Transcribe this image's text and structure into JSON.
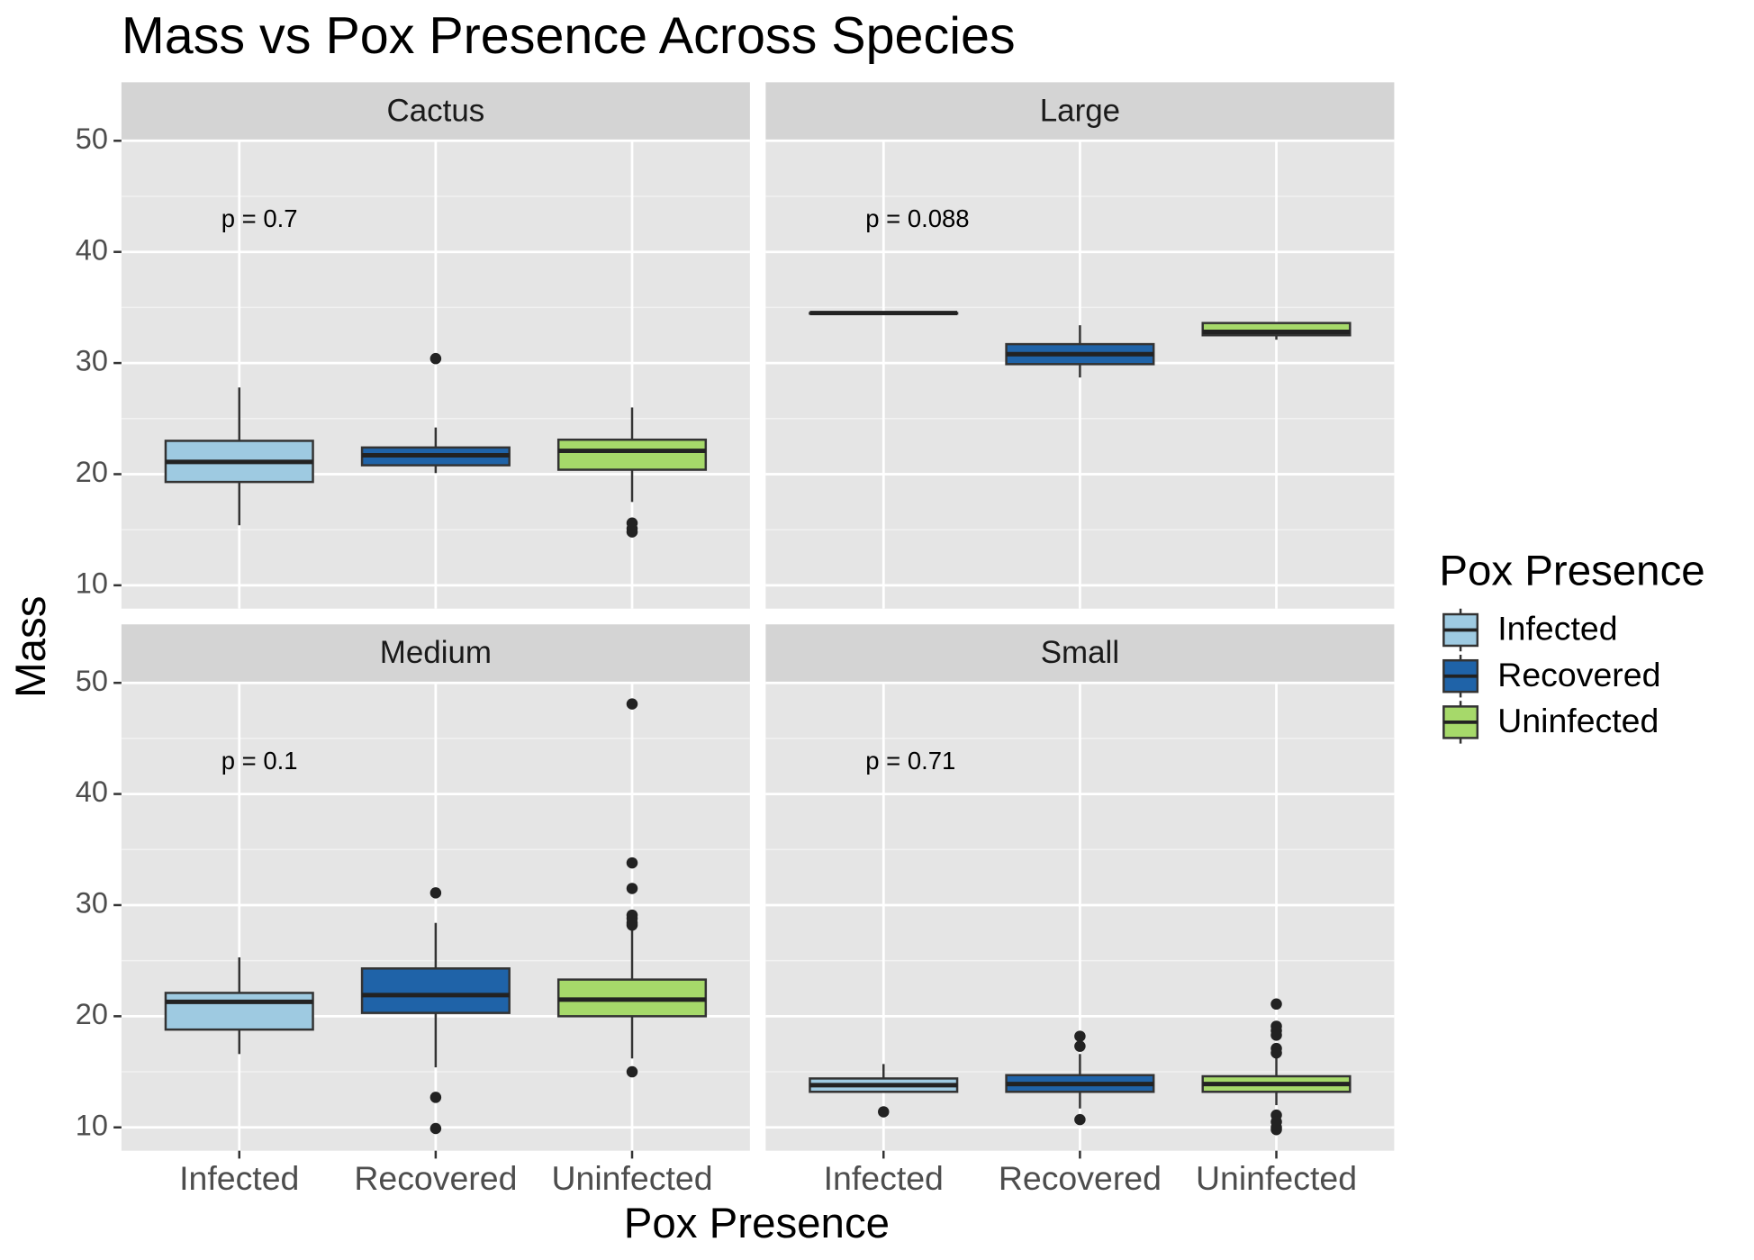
{
  "chart_data": {
    "type": "box",
    "title": "Mass vs Pox Presence Across Species",
    "x_label": "Pox Presence",
    "y_label": "Mass",
    "legend_title": "Pox Presence",
    "categories": [
      "Infected",
      "Recovered",
      "Uninfected"
    ],
    "colors": [
      "#9ecae1",
      "#1f63a8",
      "#a6d96a"
    ],
    "ylim": [
      7.9,
      50.0
    ],
    "yticks": [
      10,
      20,
      30,
      40,
      50
    ],
    "y_minor_ticks": [
      15,
      25,
      35,
      45
    ],
    "grid": true,
    "facets": [
      {
        "name": "Cactus",
        "p_label": "p = 0.7",
        "boxes": [
          {
            "min": 15.4,
            "q1": 19.3,
            "median": 21.1,
            "q3": 23.0,
            "max": 27.8,
            "outliers": []
          },
          {
            "min": 20.1,
            "q1": 20.8,
            "median": 21.7,
            "q3": 22.4,
            "max": 24.2,
            "outliers": [
              30.4
            ]
          },
          {
            "min": 17.5,
            "q1": 20.4,
            "median": 22.1,
            "q3": 23.1,
            "max": 26.0,
            "outliers": [
              15.6,
              15.1,
              14.8
            ]
          }
        ]
      },
      {
        "name": "Large",
        "p_label": "p = 0.088",
        "boxes": [
          {
            "min": 34.5,
            "q1": 34.5,
            "median": 34.5,
            "q3": 34.5,
            "max": 34.5,
            "outliers": []
          },
          {
            "min": 28.7,
            "q1": 29.9,
            "median": 30.8,
            "q3": 31.7,
            "max": 33.4,
            "outliers": []
          },
          {
            "min": 32.1,
            "q1": 32.5,
            "median": 32.8,
            "q3": 33.6,
            "max": 33.6,
            "outliers": []
          }
        ]
      },
      {
        "name": "Medium",
        "p_label": "p = 0.1",
        "boxes": [
          {
            "min": 16.6,
            "q1": 18.8,
            "median": 21.3,
            "q3": 22.1,
            "max": 25.3,
            "outliers": []
          },
          {
            "min": 15.4,
            "q1": 20.3,
            "median": 21.9,
            "q3": 24.3,
            "max": 28.4,
            "outliers": [
              31.1,
              12.7,
              9.9
            ]
          },
          {
            "min": 16.2,
            "q1": 20.0,
            "median": 21.5,
            "q3": 23.3,
            "max": 27.9,
            "outliers": [
              48.1,
              33.8,
              31.5,
              29.1,
              28.8,
              28.4,
              28.2,
              15.0
            ]
          }
        ]
      },
      {
        "name": "Small",
        "p_label": "p = 0.71",
        "boxes": [
          {
            "min": 13.1,
            "q1": 13.2,
            "median": 13.8,
            "q3": 14.4,
            "max": 15.7,
            "outliers": [
              11.4
            ]
          },
          {
            "min": 11.7,
            "q1": 13.2,
            "median": 13.9,
            "q3": 14.7,
            "max": 16.6,
            "outliers": [
              18.2,
              17.3,
              10.7
            ]
          },
          {
            "min": 12.0,
            "q1": 13.2,
            "median": 13.9,
            "q3": 14.6,
            "max": 16.5,
            "outliers": [
              21.1,
              19.1,
              18.7,
              18.3,
              17.1,
              16.7,
              11.1,
              10.5,
              10.0,
              9.8
            ]
          }
        ]
      }
    ]
  }
}
